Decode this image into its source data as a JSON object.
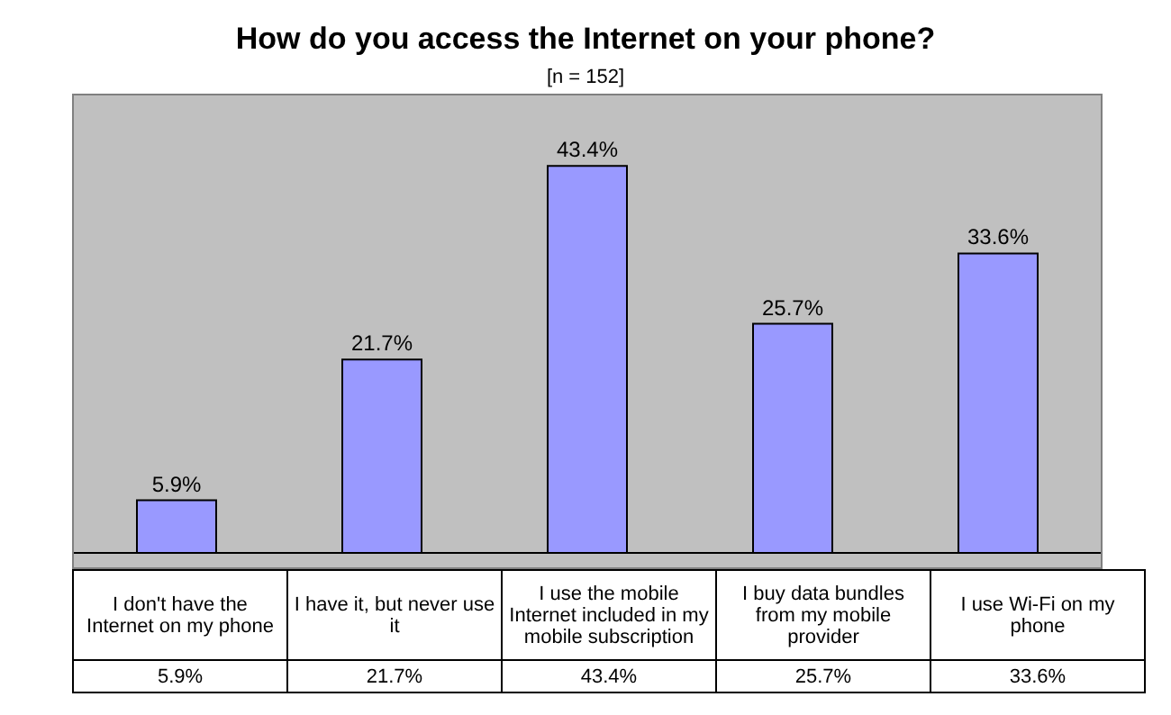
{
  "chart_data": {
    "type": "bar",
    "title": "How do you access the Internet on your phone?",
    "subtitle": "[n = 152]",
    "categories": [
      "I don't have the Internet on my phone",
      "I have it, but never use it",
      "I use the mobile Internet included in my mobile subscription",
      "I buy data bundles from my mobile provider",
      "I use Wi-Fi on my phone"
    ],
    "values": [
      5.9,
      21.7,
      43.4,
      25.7,
      33.6
    ],
    "value_labels": [
      "5.9%",
      "21.7%",
      "43.4%",
      "25.7%",
      "33.6%"
    ],
    "color": "#9999ff"
  }
}
